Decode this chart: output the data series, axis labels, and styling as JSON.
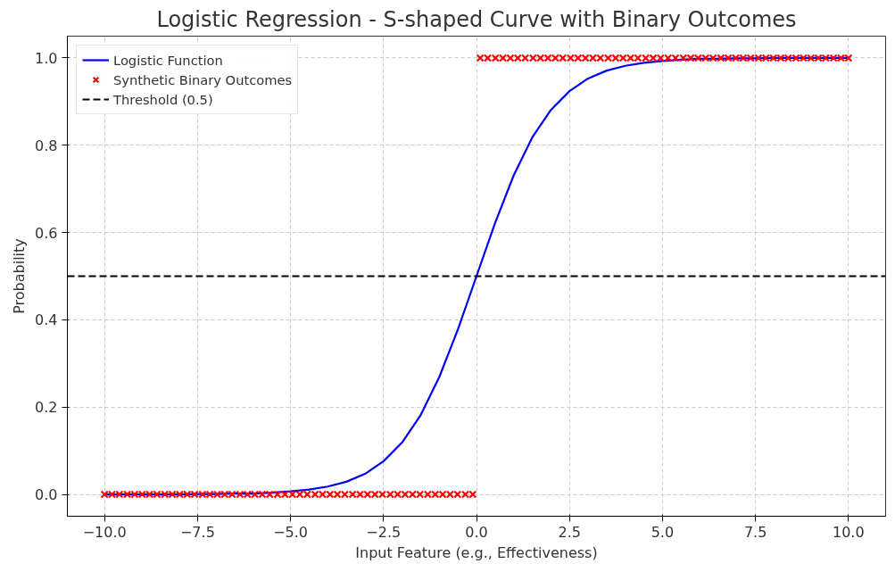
{
  "chart_data": {
    "type": "line",
    "title": "Logistic Regression - S-shaped Curve with Binary Outcomes",
    "xlabel": "Input Feature (e.g., Effectiveness)",
    "ylabel": "Probability",
    "xlim": [
      -11,
      11
    ],
    "ylim": [
      -0.05,
      1.05
    ],
    "xticks": [
      {
        "value": -10,
        "label": "−10.0"
      },
      {
        "value": -7.5,
        "label": "−7.5"
      },
      {
        "value": -5,
        "label": "−5.0"
      },
      {
        "value": -2.5,
        "label": "−2.5"
      },
      {
        "value": 0,
        "label": "0.0"
      },
      {
        "value": 2.5,
        "label": "2.5"
      },
      {
        "value": 5,
        "label": "5.0"
      },
      {
        "value": 7.5,
        "label": "7.5"
      },
      {
        "value": 10,
        "label": "10.0"
      }
    ],
    "yticks": [
      {
        "value": 0,
        "label": "0.0"
      },
      0.2,
      0.4,
      0.6,
      0.8,
      {
        "value": 1,
        "label": "1.0"
      }
    ],
    "grid": true,
    "legend": "top left",
    "series": [
      {
        "name": "Logistic Function",
        "color": "#0000ff",
        "line_style": "solid",
        "marker": "none",
        "x": [
          -10,
          -9.5,
          -9,
          -8.5,
          -8,
          -7.5,
          -7,
          -6.5,
          -6,
          -5.5,
          -5,
          -4.5,
          -4,
          -3.5,
          -3,
          -2.5,
          -2,
          -1.5,
          -1,
          -0.5,
          0,
          0.5,
          1,
          1.5,
          2,
          2.5,
          3,
          3.5,
          4,
          4.5,
          5,
          5.5,
          6,
          6.5,
          7,
          7.5,
          8,
          8.5,
          9,
          9.5,
          10
        ],
        "values": [
          0.0,
          0.0,
          0.0,
          0.0,
          0.0,
          0.001,
          0.001,
          0.002,
          0.002,
          0.004,
          0.007,
          0.011,
          0.018,
          0.029,
          0.047,
          0.076,
          0.119,
          0.182,
          0.269,
          0.378,
          0.5,
          0.622,
          0.731,
          0.818,
          0.881,
          0.924,
          0.953,
          0.971,
          0.982,
          0.989,
          0.993,
          0.996,
          0.998,
          0.998,
          0.999,
          0.999,
          1.0,
          1.0,
          1.0,
          1.0,
          1.0
        ]
      },
      {
        "name": "Synthetic Binary Outcomes",
        "type": "scatter",
        "color": "#ff0000",
        "marker": "cross",
        "x": [
          -10.0,
          -9.8,
          -9.6,
          -9.39,
          -9.19,
          -8.99,
          -8.79,
          -8.59,
          -8.38,
          -8.18,
          -7.98,
          -7.78,
          -7.58,
          -7.37,
          -7.17,
          -6.97,
          -6.77,
          -6.57,
          -6.36,
          -6.16,
          -5.96,
          -5.76,
          -5.56,
          -5.35,
          -5.15,
          -4.95,
          -4.75,
          -4.55,
          -4.34,
          -4.14,
          -3.94,
          -3.74,
          -3.54,
          -3.33,
          -3.13,
          -2.93,
          -2.73,
          -2.53,
          -2.32,
          -2.12,
          -1.92,
          -1.72,
          -1.52,
          -1.31,
          -1.11,
          -0.91,
          -0.71,
          -0.51,
          -0.3,
          -0.1,
          0.1,
          0.3,
          0.51,
          0.71,
          0.91,
          1.11,
          1.31,
          1.52,
          1.72,
          1.92,
          2.12,
          2.32,
          2.53,
          2.73,
          2.93,
          3.13,
          3.33,
          3.54,
          3.74,
          3.94,
          4.14,
          4.34,
          4.55,
          4.75,
          4.95,
          5.15,
          5.35,
          5.56,
          5.76,
          5.96,
          6.16,
          6.36,
          6.57,
          6.77,
          6.97,
          7.17,
          7.37,
          7.58,
          7.78,
          7.98,
          8.18,
          8.38,
          8.59,
          8.79,
          8.99,
          9.19,
          9.39,
          9.6,
          9.8,
          10.0
        ],
        "values": [
          0,
          0,
          0,
          0,
          0,
          0,
          0,
          0,
          0,
          0,
          0,
          0,
          0,
          0,
          0,
          0,
          0,
          0,
          0,
          0,
          0,
          0,
          0,
          0,
          0,
          0,
          0,
          0,
          0,
          0,
          0,
          0,
          0,
          0,
          0,
          0,
          0,
          0,
          0,
          0,
          0,
          0,
          0,
          0,
          0,
          0,
          0,
          0,
          0,
          0,
          1,
          1,
          1,
          1,
          1,
          1,
          1,
          1,
          1,
          1,
          1,
          1,
          1,
          1,
          1,
          1,
          1,
          1,
          1,
          1,
          1,
          1,
          1,
          1,
          1,
          1,
          1,
          1,
          1,
          1,
          1,
          1,
          1,
          1,
          1,
          1,
          1,
          1,
          1,
          1,
          1,
          1,
          1,
          1,
          1,
          1,
          1,
          1,
          1,
          1
        ]
      }
    ],
    "ref_lines": [
      {
        "axis": "y",
        "value": 0.5,
        "label": "Threshold (0.5)",
        "color": "#000000",
        "line_style": "dashed"
      }
    ]
  }
}
